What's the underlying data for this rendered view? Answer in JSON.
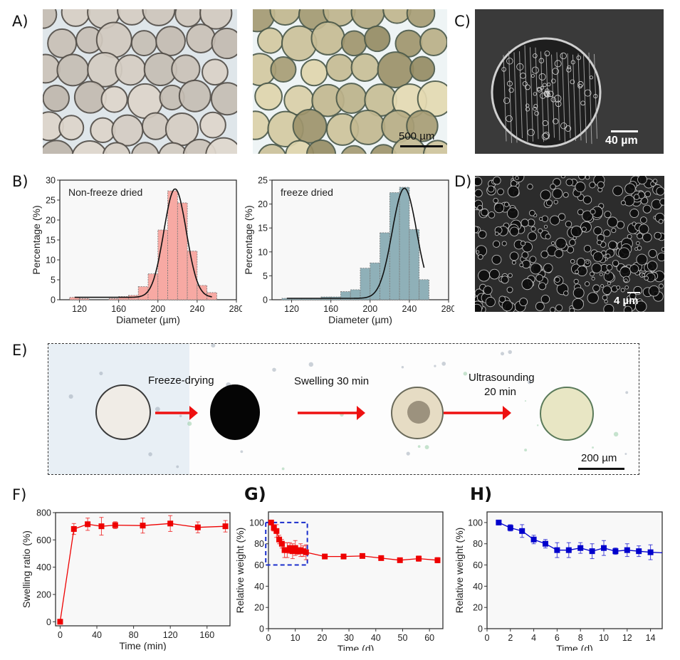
{
  "panel_labels": {
    "A": "A)",
    "B": "B)",
    "C": "C)",
    "D": "D)",
    "E": "E)",
    "F": "F)",
    "G": "G)",
    "H": "H)"
  },
  "panel_a": {
    "left_image": "microbeads-non-freeze-dried",
    "right_image": "microbeads-freeze-dried",
    "scale_bar": "500 µm"
  },
  "panel_c": {
    "image": "sem-porous-microsphere",
    "scale_bar": "40 µm"
  },
  "panel_d": {
    "image": "sem-porous-network",
    "scale_bar": "4 µm"
  },
  "panel_e": {
    "steps": [
      "Freeze-drying",
      "Swelling 30 min",
      "Ultrasounding",
      "20 min"
    ],
    "scale_bar": "200 µm",
    "arrow_color": "#ee1111"
  },
  "colors": {
    "red_series": "#ee0000",
    "blue_series": "#0000cc",
    "hist_a": "#f7a9a3",
    "hist_b": "#8fb0b8",
    "fit": "#111111"
  },
  "chart_data": [
    {
      "id": "B-left",
      "type": "bar",
      "title": "Non-freeze dried",
      "xlabel": "Diameter (µm)",
      "ylabel": "Percentage (%)",
      "xlim": [
        100,
        280
      ],
      "ylim": [
        0,
        30
      ],
      "xticks": [
        120,
        160,
        200,
        240,
        280
      ],
      "yticks": [
        0,
        5,
        10,
        15,
        20,
        25,
        30
      ],
      "bin_width": 10,
      "bin_centers": [
        115,
        125,
        135,
        145,
        155,
        165,
        175,
        185,
        195,
        205,
        215,
        225,
        235,
        245,
        255
      ],
      "values": [
        0.6,
        0.3,
        0,
        0,
        0.3,
        0.8,
        1.1,
        3.3,
        6.5,
        17.5,
        27.3,
        24.3,
        12.2,
        3.6,
        1.8
      ],
      "fit": {
        "type": "gaussian",
        "center": 217.5,
        "amplitude": 27.8,
        "sigma": 11.5,
        "baseline": 0.6,
        "range": [
          115,
          255
        ]
      }
    },
    {
      "id": "B-right",
      "type": "bar",
      "title": "freeze dried",
      "xlabel": "Diameter (µm)",
      "ylabel": "Percentage (%)",
      "xlim": [
        100,
        280
      ],
      "ylim": [
        0,
        25
      ],
      "xticks": [
        120,
        160,
        200,
        240,
        280
      ],
      "yticks": [
        0,
        5,
        10,
        15,
        20,
        25
      ],
      "bin_width": 10,
      "bin_centers": [
        115,
        125,
        135,
        145,
        155,
        165,
        175,
        185,
        195,
        205,
        215,
        225,
        235,
        245,
        255
      ],
      "values": [
        0.3,
        0.3,
        0.3,
        0.3,
        0.6,
        0.6,
        1.7,
        2.1,
        6.6,
        7.7,
        14.0,
        22.4,
        23.5,
        14.7,
        4.2
      ],
      "fit": {
        "type": "gaussian",
        "center": 235,
        "amplitude": 23.3,
        "sigma": 12.5,
        "baseline": 0.3,
        "range": [
          115,
          255
        ]
      }
    },
    {
      "id": "F",
      "type": "line",
      "xlabel": "Time (min)",
      "ylabel": "Swelling ratio (%)",
      "xlim": [
        -5,
        185
      ],
      "ylim": [
        -30,
        800
      ],
      "xticks": [
        0,
        40,
        80,
        120,
        160
      ],
      "yticks": [
        0,
        200,
        400,
        600,
        800
      ],
      "series": [
        {
          "name": "swelling",
          "color": "#ee0000",
          "x": [
            0,
            15,
            30,
            45,
            60,
            90,
            120,
            150,
            180
          ],
          "y": [
            0,
            680,
            715,
            700,
            708,
            705,
            720,
            692,
            700
          ],
          "err": [
            0,
            40,
            45,
            65,
            25,
            55,
            58,
            40,
            42
          ]
        }
      ]
    },
    {
      "id": "G",
      "type": "line",
      "xlabel": "Time (d)",
      "ylabel": "Relative weight (%)",
      "xlim": [
        0,
        65
      ],
      "ylim": [
        0,
        110
      ],
      "xticks": [
        0,
        10,
        20,
        30,
        40,
        50,
        60
      ],
      "yticks": [
        0,
        20,
        40,
        60,
        80,
        100
      ],
      "highlight_box": {
        "x": [
          -1,
          14.5
        ],
        "y": [
          60,
          100
        ],
        "color": "#1a2ecc"
      },
      "series": [
        {
          "name": "degradation",
          "color": "#ee0000",
          "x": [
            1,
            2,
            3,
            4,
            5,
            6,
            7,
            8,
            9,
            10,
            11,
            12,
            13,
            14,
            21,
            28,
            35,
            42,
            49,
            56,
            63
          ],
          "y": [
            100,
            95,
            92,
            84,
            80,
            74,
            74,
            76,
            73,
            76,
            73,
            74,
            73,
            72,
            68,
            68,
            68.5,
            66.5,
            64.5,
            66,
            64.5
          ],
          "err": [
            0,
            3,
            6,
            4,
            4,
            7,
            7,
            5,
            7,
            7,
            3,
            6,
            5,
            7,
            2,
            2,
            2,
            2,
            2,
            2.5,
            2.5
          ]
        }
      ]
    },
    {
      "id": "H",
      "type": "line",
      "xlabel": "Time (d)",
      "ylabel": "Relative weight (%)",
      "xlim": [
        0,
        15
      ],
      "ylim": [
        0,
        110
      ],
      "xticks": [
        0,
        2,
        4,
        6,
        8,
        10,
        12,
        14
      ],
      "yticks": [
        0,
        20,
        40,
        60,
        80,
        100
      ],
      "series": [
        {
          "name": "degradation-zoom",
          "color": "#0000cc",
          "x": [
            1,
            2,
            3,
            4,
            5,
            6,
            7,
            8,
            9,
            10,
            11,
            12,
            13,
            14,
            15
          ],
          "y": [
            100,
            95,
            92,
            84,
            80,
            74,
            74,
            76,
            73,
            76,
            73,
            74,
            73,
            72,
            71.5
          ],
          "err": [
            0,
            3,
            6,
            4,
            4,
            7,
            7,
            5,
            7,
            7,
            3,
            6,
            5,
            7,
            0
          ]
        }
      ]
    }
  ]
}
